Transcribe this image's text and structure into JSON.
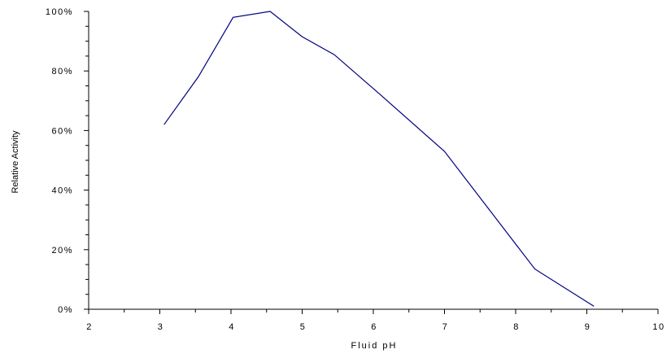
{
  "chart_data": {
    "type": "line",
    "title": "",
    "xlabel": "Fluid pH",
    "ylabel": "Relative Activity",
    "xlim": [
      2,
      10
    ],
    "ylim": [
      0,
      100
    ],
    "x_ticks": [
      2,
      3,
      4,
      5,
      6,
      7,
      8,
      9,
      10
    ],
    "x_tick_labels": [
      "2",
      "3",
      "4",
      "5",
      "6",
      "7",
      "8",
      "9",
      "10"
    ],
    "y_ticks": [
      0,
      20,
      40,
      60,
      80,
      100
    ],
    "y_tick_labels": [
      "0%",
      "20%",
      "40%",
      "60%",
      "80%",
      "100%"
    ],
    "x_minor_ticks_per_major": 2,
    "y_minor_ticks_per_major": 4,
    "grid": false,
    "legend": "none",
    "series": [
      {
        "color": "#000080",
        "x": [
          3.06,
          3.54,
          4.03,
          4.55,
          5.0,
          5.45,
          6.1,
          7.0,
          8.27,
          9.1
        ],
        "y": [
          62,
          78,
          98,
          100,
          91.5,
          85.5,
          72,
          53,
          13.5,
          1
        ]
      }
    ]
  }
}
